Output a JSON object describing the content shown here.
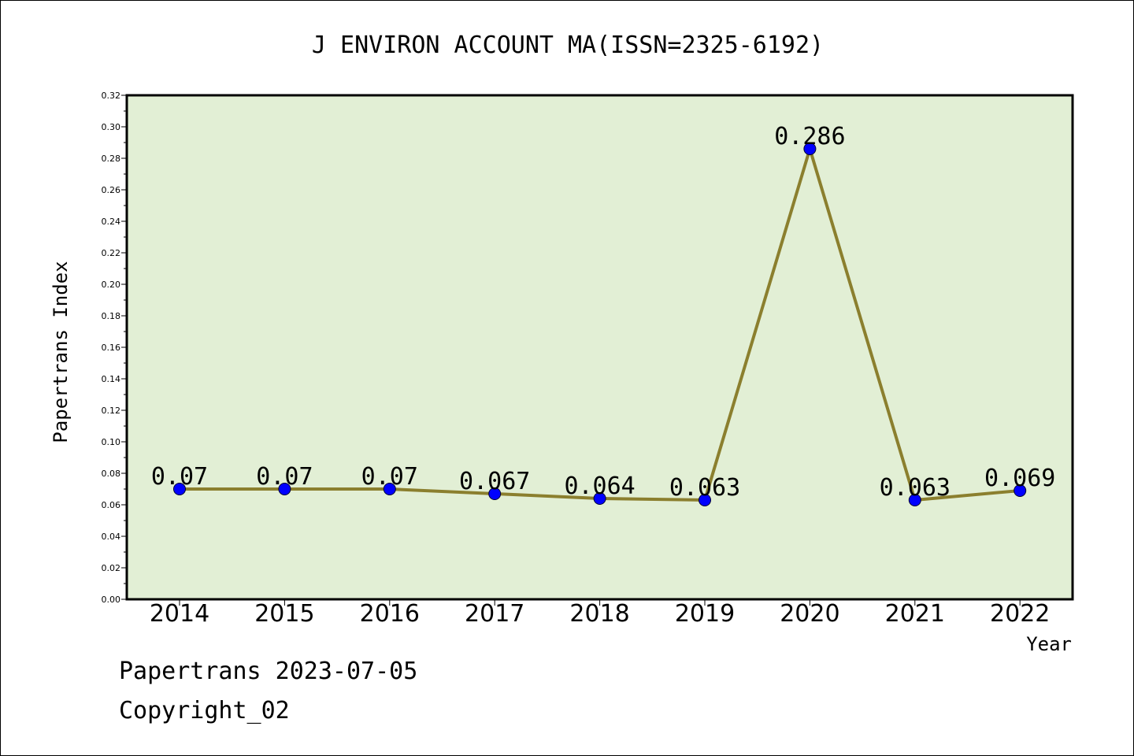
{
  "chart_data": {
    "type": "line",
    "title": "J ENVIRON ACCOUNT MA(ISSN=2325-6192)",
    "xlabel": "Year",
    "ylabel": "Papertrans Index",
    "categories": [
      "2014",
      "2015",
      "2016",
      "2017",
      "2018",
      "2019",
      "2020",
      "2021",
      "2022"
    ],
    "values": [
      0.07,
      0.07,
      0.07,
      0.067,
      0.064,
      0.063,
      0.286,
      0.063,
      0.069
    ],
    "data_labels": [
      "0.07",
      "0.07",
      "0.07",
      "0.067",
      "0.064",
      "0.063",
      "0.286",
      "0.063",
      "0.069"
    ],
    "ylim": [
      0,
      0.32
    ],
    "y_ticks": [
      "0.00",
      "0.02",
      "0.04",
      "0.06",
      "0.08",
      "0.10",
      "0.12",
      "0.14",
      "0.16",
      "0.18",
      "0.20",
      "0.22",
      "0.24",
      "0.26",
      "0.28",
      "0.30",
      "0.32"
    ],
    "grid": false,
    "legend": "none",
    "colors": {
      "plot_background": "#e2efd5",
      "line": "#8b7f2e",
      "marker": "#0000ff"
    }
  },
  "footer": {
    "date_text": "Papertrans 2023-07-05",
    "copyright_text": "Copyright_02"
  }
}
